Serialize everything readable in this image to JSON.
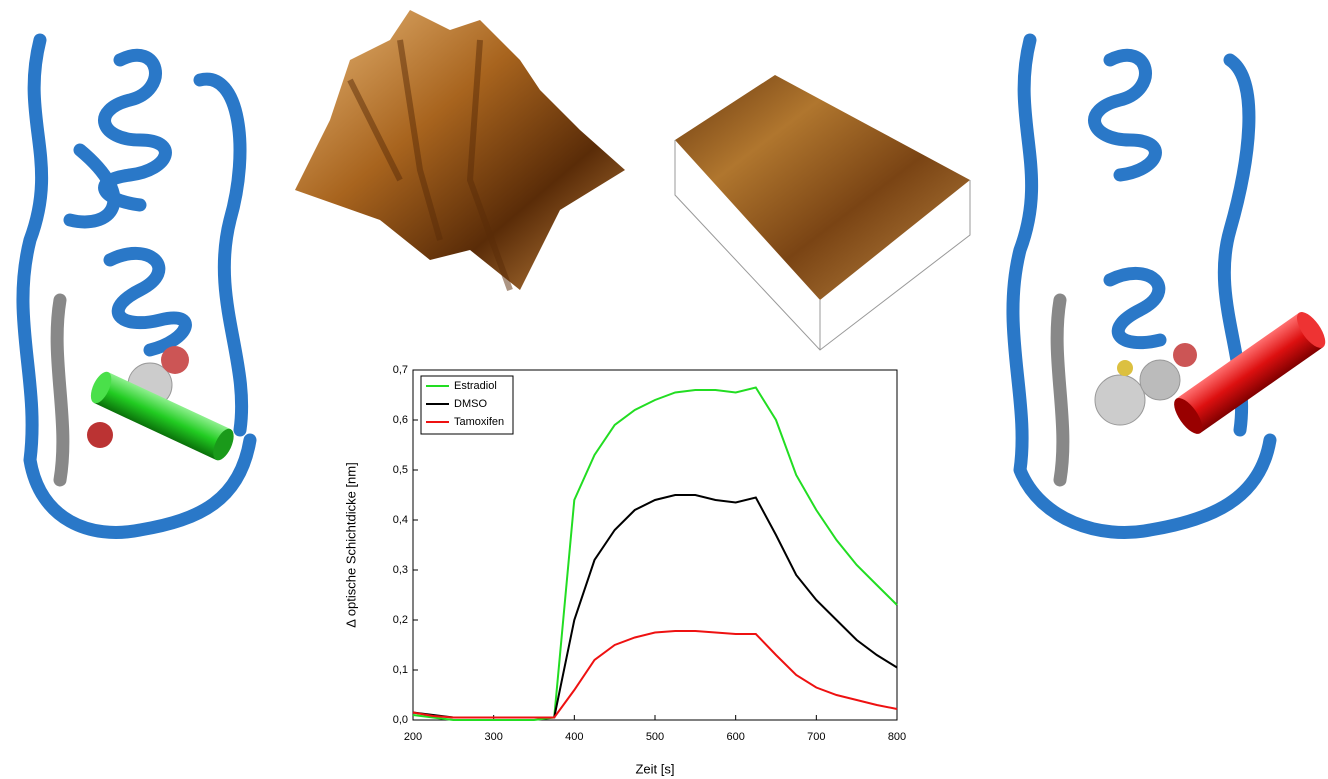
{
  "chart_data": {
    "type": "line",
    "x_label": "Zeit [s]",
    "y_label": "Δ optische Schichtdicke [nm]",
    "x": [
      200,
      225,
      250,
      275,
      300,
      325,
      350,
      375,
      400,
      425,
      450,
      475,
      500,
      525,
      550,
      575,
      600,
      625,
      650,
      675,
      700,
      725,
      750,
      775,
      800
    ],
    "series": [
      {
        "name": "Estradiol",
        "color": "#22dd22",
        "values": [
          0.01,
          0.005,
          0.0,
          0.0,
          0.0,
          0.0,
          0.0,
          0.005,
          0.44,
          0.53,
          0.59,
          0.62,
          0.64,
          0.655,
          0.66,
          0.66,
          0.655,
          0.665,
          0.6,
          0.49,
          0.42,
          0.36,
          0.31,
          0.27,
          0.23
        ]
      },
      {
        "name": "DMSO",
        "color": "#000000",
        "values": [
          0.015,
          0.01,
          0.005,
          0.005,
          0.005,
          0.005,
          0.005,
          0.005,
          0.2,
          0.32,
          0.38,
          0.42,
          0.44,
          0.45,
          0.45,
          0.44,
          0.435,
          0.445,
          0.37,
          0.29,
          0.24,
          0.2,
          0.16,
          0.13,
          0.105
        ]
      },
      {
        "name": "Tamoxifen",
        "color": "#ee1111",
        "values": [
          0.015,
          0.008,
          0.005,
          0.005,
          0.005,
          0.005,
          0.005,
          0.005,
          0.06,
          0.12,
          0.15,
          0.165,
          0.175,
          0.178,
          0.178,
          0.175,
          0.172,
          0.172,
          0.13,
          0.09,
          0.065,
          0.05,
          0.04,
          0.03,
          0.022
        ]
      }
    ],
    "xlim": [
      200,
      800
    ],
    "xticks": [
      200,
      300,
      400,
      500,
      600,
      700,
      800
    ],
    "ylim": [
      0,
      0.7
    ],
    "yticks": [
      {
        "value": 0,
        "label": "0,0"
      },
      {
        "value": 0.1,
        "label": "0,1"
      },
      {
        "value": 0.2,
        "label": "0,2"
      },
      {
        "value": 0.3,
        "label": "0,3"
      },
      {
        "value": 0.4,
        "label": "0,4"
      },
      {
        "value": 0.5,
        "label": "0,5"
      },
      {
        "value": 0.6,
        "label": "0,6"
      },
      {
        "value": 0.7,
        "label": "0,7"
      }
    ],
    "legend": "top-left"
  }
}
